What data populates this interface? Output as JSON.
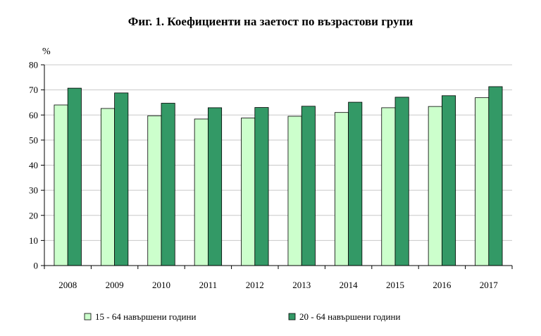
{
  "chart_data": {
    "type": "bar",
    "title": "Фиг. 1. Коефициенти на заетост по възрастови групи",
    "y_unit": "%",
    "xlabel": "",
    "ylabel": "",
    "ylim": [
      0,
      80
    ],
    "yticks": [
      0,
      10,
      20,
      30,
      40,
      50,
      60,
      70,
      80
    ],
    "grid": true,
    "legend_position": "bottom",
    "categories": [
      "2008",
      "2009",
      "2010",
      "2011",
      "2012",
      "2013",
      "2014",
      "2015",
      "2016",
      "2017"
    ],
    "series": [
      {
        "name": "15 - 64 навършени години",
        "color": "#ccffcc",
        "values": [
          64.0,
          62.6,
          59.7,
          58.4,
          58.8,
          59.5,
          61.0,
          62.9,
          63.4,
          66.9
        ]
      },
      {
        "name": "20 - 64 навършени години",
        "color": "#339966",
        "values": [
          70.7,
          68.8,
          64.7,
          62.9,
          63.0,
          63.5,
          65.1,
          67.1,
          67.7,
          71.3
        ]
      }
    ]
  }
}
